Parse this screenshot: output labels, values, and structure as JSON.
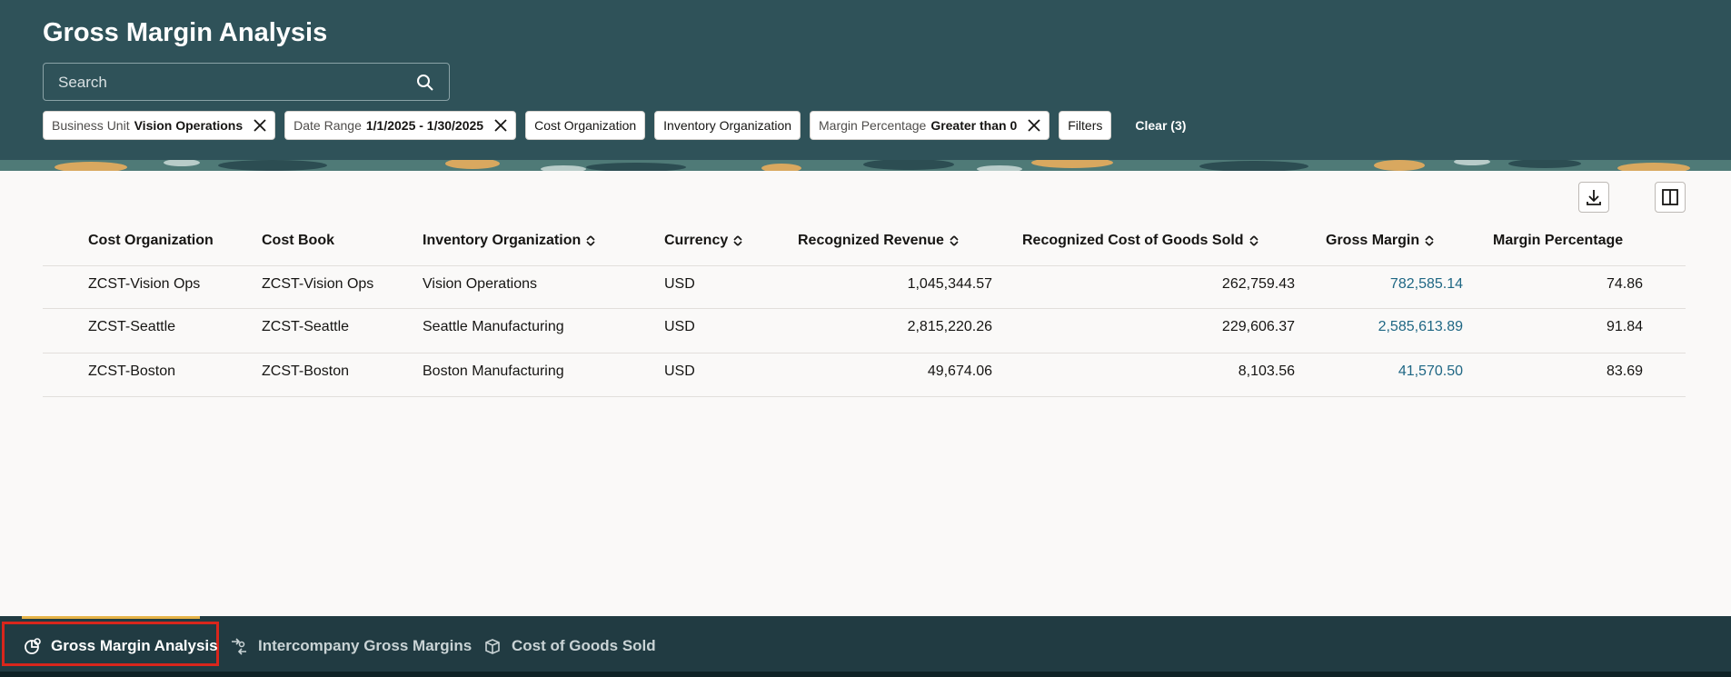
{
  "header": {
    "title": "Gross Margin Analysis",
    "search_placeholder": "Search"
  },
  "filter_chips": [
    {
      "label": "Business Unit",
      "value": "Vision Operations",
      "removable": true
    },
    {
      "label": "Date Range",
      "value": "1/1/2025 - 1/30/2025",
      "removable": true
    },
    {
      "label": "Cost Organization"
    },
    {
      "label": "Inventory Organization"
    },
    {
      "label": "Margin Percentage",
      "value": "Greater than 0",
      "removable": true
    },
    {
      "label": "Filters"
    }
  ],
  "clear_link": "Clear (3)",
  "table": {
    "columns": [
      {
        "label": "Cost Organization",
        "sortable": false
      },
      {
        "label": "Cost Book",
        "sortable": false
      },
      {
        "label": "Inventory Organization",
        "sortable": true
      },
      {
        "label": "Currency",
        "sortable": true
      },
      {
        "label": "Recognized Revenue",
        "sortable": true
      },
      {
        "label": "Recognized Cost of Goods Sold",
        "sortable": true
      },
      {
        "label": "Gross Margin",
        "sortable": true
      },
      {
        "label": "Margin Percentage",
        "sortable": false
      }
    ],
    "rows": [
      [
        "ZCST-Vision Ops",
        "ZCST-Vision Ops",
        "Vision Operations",
        "USD",
        "1,045,344.57",
        "262,759.43",
        "782,585.14",
        "74.86"
      ],
      [
        "ZCST-Seattle",
        "ZCST-Seattle",
        "Seattle Manufacturing",
        "USD",
        "2,815,220.26",
        "229,606.37",
        "2,585,613.89",
        "91.84"
      ],
      [
        "ZCST-Boston",
        "ZCST-Boston",
        "Boston Manufacturing",
        "USD",
        "49,674.06",
        "8,103.56",
        "41,570.50",
        "83.69"
      ]
    ]
  },
  "tabs": [
    {
      "label": "Gross Margin Analysis",
      "active": true
    },
    {
      "label": "Intercompany Gross Margins",
      "active": false
    },
    {
      "label": "Cost of Goods Sold",
      "active": false
    }
  ]
}
